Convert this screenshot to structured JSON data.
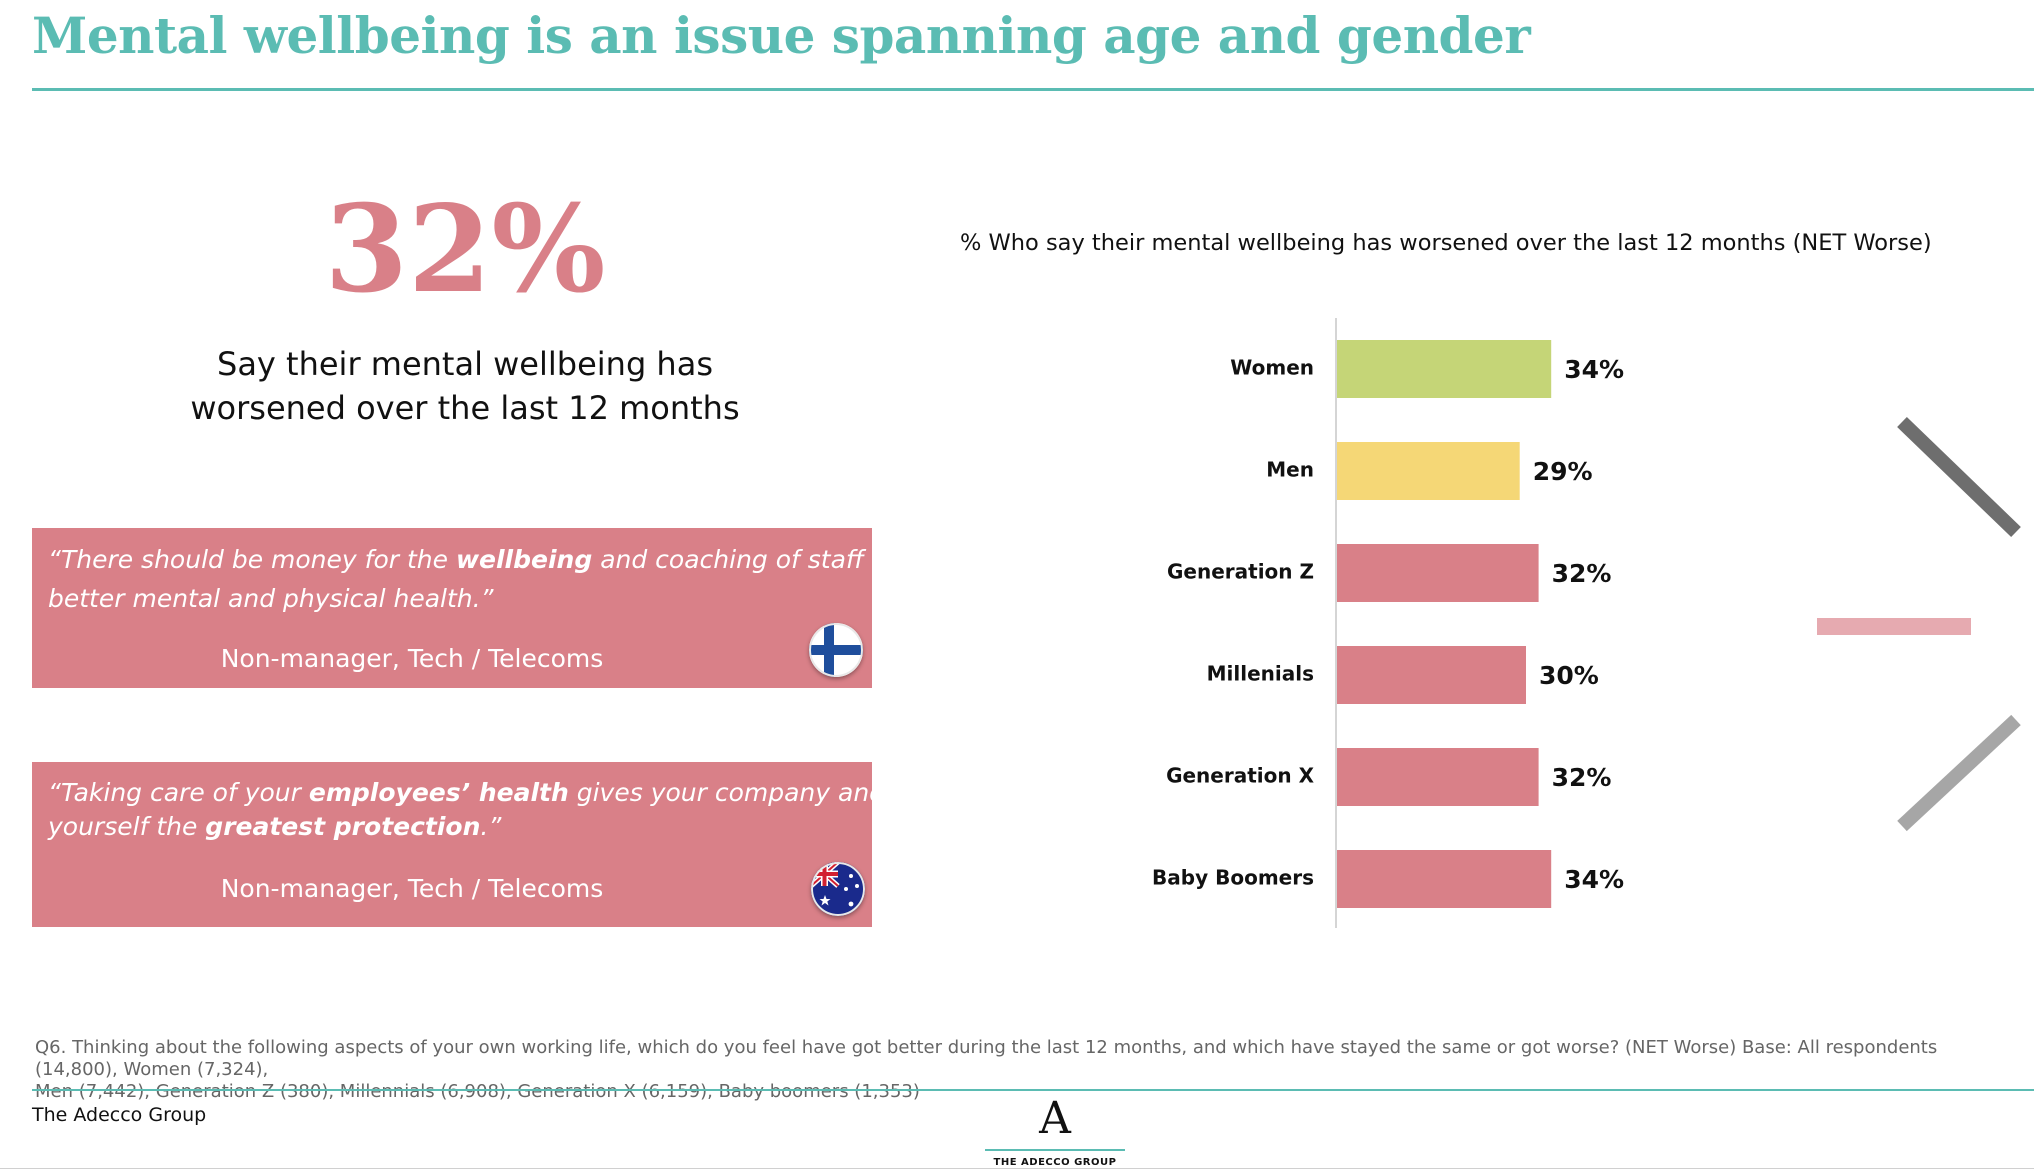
{
  "title": "Mental wellbeing is an issue spanning age and gender",
  "headline_stat": {
    "value": "32%",
    "caption_line1": "Say their mental wellbeing has",
    "caption_line2": "worsened over the last 12 months"
  },
  "quotes": [
    {
      "line1_pre": "“There should be money for the ",
      "line1_bold": "wellbeing",
      "line1_post": " and coaching of staff towards",
      "line2": "better mental and physical health.”",
      "attribution": "Non-manager, Tech / Telecoms",
      "flag_icon": "finland-flag-icon"
    },
    {
      "line1_pre": "“Taking care of your ",
      "line1_bold": "employees’ health",
      "line1_post": " gives your company and",
      "line2_pre": "yourself the ",
      "line2_bold": "greatest protection",
      "line2_post": ".”",
      "attribution": "Non-manager, Tech / Telecoms",
      "flag_icon": "australia-flag-icon"
    }
  ],
  "chart_data": {
    "type": "bar",
    "orientation": "horizontal",
    "title": "% Who say their mental wellbeing has worsened over the last 12 months (NET Worse)",
    "categories": [
      "Women",
      "Men",
      "Generation Z",
      "Millenials",
      "Generation X",
      "Baby Boomers"
    ],
    "values": [
      34,
      29,
      32,
      30,
      32,
      34
    ],
    "labels": [
      "34%",
      "29%",
      "32%",
      "30%",
      "32%",
      "34%"
    ],
    "colors": [
      "#c5d577",
      "#f5d776",
      "#d98088",
      "#d98088",
      "#d98088",
      "#d98088"
    ],
    "xlim": [
      0,
      100
    ],
    "grid": false,
    "legend": "none"
  },
  "footnote": {
    "line1": "Q6. Thinking about the following aspects of your own working life, which do you feel have got better during the last 12 months, and which have stayed the same or got worse? (NET Worse) Base: All respondents (14,800), Women (7,324),",
    "line2": "Men (7,442), Generation Z (380), Millennials (6,908), Generation X (6,159), Baby boomers (1,353)"
  },
  "footer": {
    "brand": "The Adecco Group",
    "logo_letter": "A",
    "logo_text": "THE ADECCO GROUP"
  },
  "colors": {
    "teal": "#5bbcb3",
    "pink": "#d98088",
    "green": "#c5d577",
    "yellow": "#f5d776"
  }
}
